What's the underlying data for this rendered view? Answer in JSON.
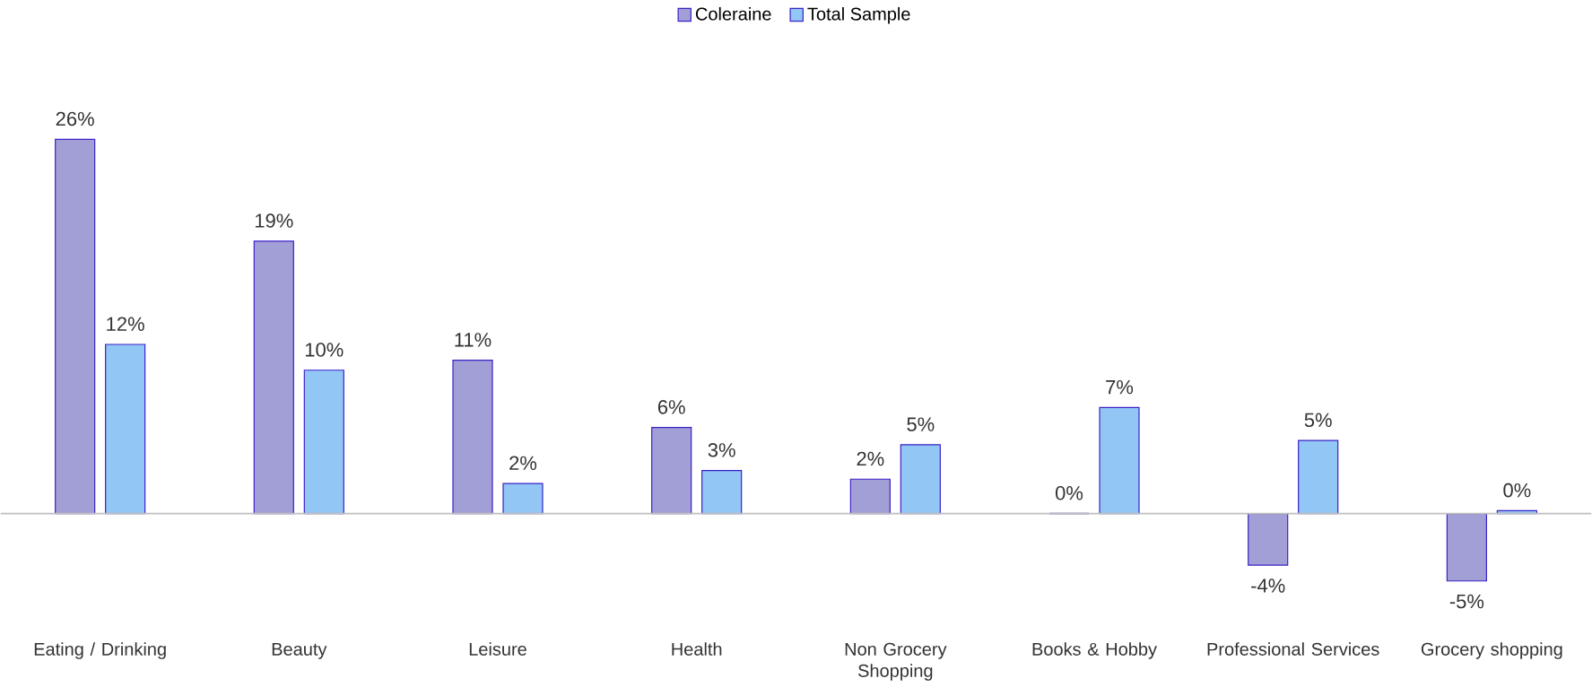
{
  "chart_data": {
    "type": "bar",
    "categories": [
      "Eating / Drinking",
      "Beauty",
      "Leisure",
      "Health",
      "Non Grocery Shopping",
      "Books & Hobby",
      "Professional Services",
      "Grocery shopping"
    ],
    "series": [
      {
        "name": "Coleraine",
        "color": "#a29fd6",
        "values": [
          26.1,
          19,
          10.7,
          6,
          2.4,
          0,
          -3.6,
          -4.7
        ],
        "value_labels": [
          "26%",
          "19%",
          "11%",
          "6%",
          "2%",
          "0%",
          "-4%",
          "-5%"
        ]
      },
      {
        "name": "Total Sample",
        "color": "#92c6f4",
        "values": [
          11.8,
          10,
          2.1,
          3,
          4.8,
          7.4,
          5.1,
          0.2
        ],
        "value_labels": [
          "12%",
          "10%",
          "2%",
          "3%",
          "5%",
          "7%",
          "5%",
          "0%"
        ]
      }
    ],
    "legend": "top",
    "grid": false
  }
}
